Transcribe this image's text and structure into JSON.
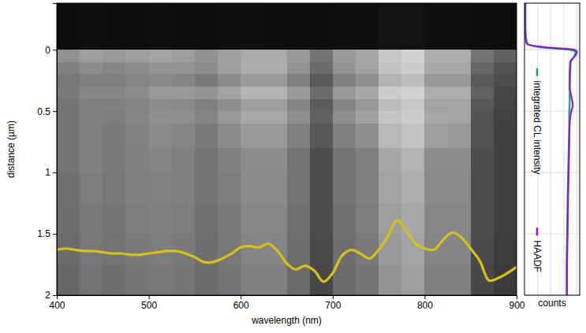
{
  "chart_data": [
    {
      "type": "heatmap",
      "xlabel": "wavelength (nm)",
      "ylabel": "distance (µm)",
      "xlim": [
        400,
        900
      ],
      "ylim": [
        -0.38,
        2
      ],
      "xticks": [
        400,
        500,
        600,
        700,
        800,
        900
      ],
      "yticks": [
        0,
        0.5,
        1,
        1.5,
        2
      ],
      "zlim": [
        0,
        1
      ],
      "x_edges": [
        400,
        425,
        450,
        475,
        500,
        525,
        550,
        575,
        600,
        625,
        650,
        675,
        700,
        725,
        750,
        775,
        800,
        825,
        850,
        875,
        900
      ],
      "y_edges": [
        -0.38,
        0,
        0.1,
        0.2,
        0.3,
        0.4,
        0.5,
        0.6,
        0.8,
        1.0,
        1.25,
        1.5,
        1.75,
        2.0
      ],
      "cells": [
        [
          0.05,
          0.06,
          0.05,
          0.05,
          0.06,
          0.05,
          0.05,
          0.06,
          0.06,
          0.05,
          0.05,
          0.05,
          0.06,
          0.06,
          0.07,
          0.07,
          0.06,
          0.06,
          0.05,
          0.05
        ],
        [
          0.57,
          0.62,
          0.6,
          0.62,
          0.64,
          0.62,
          0.57,
          0.62,
          0.67,
          0.67,
          0.6,
          0.45,
          0.6,
          0.65,
          0.78,
          0.82,
          0.68,
          0.68,
          0.45,
          0.38
        ],
        [
          0.5,
          0.55,
          0.52,
          0.55,
          0.58,
          0.58,
          0.55,
          0.62,
          0.68,
          0.68,
          0.58,
          0.42,
          0.58,
          0.64,
          0.76,
          0.8,
          0.66,
          0.66,
          0.4,
          0.32
        ],
        [
          0.47,
          0.5,
          0.5,
          0.52,
          0.54,
          0.52,
          0.48,
          0.54,
          0.6,
          0.6,
          0.5,
          0.35,
          0.5,
          0.56,
          0.7,
          0.74,
          0.6,
          0.6,
          0.35,
          0.3
        ],
        [
          0.48,
          0.52,
          0.52,
          0.55,
          0.6,
          0.6,
          0.58,
          0.64,
          0.7,
          0.7,
          0.6,
          0.42,
          0.6,
          0.66,
          0.8,
          0.82,
          0.68,
          0.68,
          0.38,
          0.28
        ],
        [
          0.46,
          0.5,
          0.5,
          0.52,
          0.55,
          0.54,
          0.5,
          0.56,
          0.62,
          0.62,
          0.52,
          0.36,
          0.52,
          0.6,
          0.74,
          0.78,
          0.64,
          0.64,
          0.34,
          0.27
        ],
        [
          0.46,
          0.5,
          0.49,
          0.52,
          0.56,
          0.56,
          0.52,
          0.6,
          0.66,
          0.66,
          0.56,
          0.38,
          0.56,
          0.63,
          0.77,
          0.8,
          0.66,
          0.64,
          0.33,
          0.26
        ],
        [
          0.45,
          0.5,
          0.48,
          0.51,
          0.54,
          0.52,
          0.48,
          0.54,
          0.6,
          0.6,
          0.5,
          0.34,
          0.5,
          0.56,
          0.72,
          0.76,
          0.62,
          0.6,
          0.32,
          0.25
        ],
        [
          0.45,
          0.5,
          0.48,
          0.5,
          0.52,
          0.5,
          0.45,
          0.5,
          0.55,
          0.55,
          0.45,
          0.3,
          0.45,
          0.5,
          0.65,
          0.7,
          0.55,
          0.55,
          0.3,
          0.25
        ],
        [
          0.44,
          0.49,
          0.47,
          0.5,
          0.51,
          0.5,
          0.45,
          0.49,
          0.54,
          0.54,
          0.45,
          0.3,
          0.45,
          0.5,
          0.64,
          0.68,
          0.54,
          0.54,
          0.3,
          0.25
        ],
        [
          0.43,
          0.48,
          0.46,
          0.49,
          0.5,
          0.49,
          0.44,
          0.48,
          0.53,
          0.53,
          0.44,
          0.3,
          0.44,
          0.49,
          0.62,
          0.66,
          0.53,
          0.53,
          0.3,
          0.25
        ],
        [
          0.42,
          0.47,
          0.45,
          0.48,
          0.49,
          0.48,
          0.43,
          0.47,
          0.52,
          0.52,
          0.43,
          0.29,
          0.43,
          0.48,
          0.6,
          0.64,
          0.52,
          0.52,
          0.29,
          0.24
        ],
        [
          0.4,
          0.45,
          0.43,
          0.46,
          0.47,
          0.46,
          0.42,
          0.45,
          0.5,
          0.5,
          0.42,
          0.28,
          0.42,
          0.46,
          0.58,
          0.62,
          0.5,
          0.5,
          0.28,
          0.23
        ]
      ],
      "series": [
        {
          "type": "line",
          "color": "#d4c21a",
          "x": [
            400,
            410,
            420,
            430,
            440,
            450,
            460,
            470,
            480,
            490,
            500,
            510,
            520,
            530,
            540,
            550,
            560,
            570,
            580,
            590,
            600,
            610,
            620,
            630,
            640,
            650,
            660,
            670,
            680,
            690,
            700,
            710,
            720,
            730,
            740,
            750,
            760,
            770,
            780,
            790,
            800,
            810,
            820,
            830,
            840,
            850,
            860,
            870,
            880,
            890,
            900
          ],
          "values": [
            1.63,
            1.62,
            1.63,
            1.64,
            1.64,
            1.65,
            1.66,
            1.66,
            1.67,
            1.67,
            1.66,
            1.65,
            1.64,
            1.64,
            1.66,
            1.69,
            1.73,
            1.73,
            1.7,
            1.66,
            1.61,
            1.6,
            1.61,
            1.58,
            1.64,
            1.74,
            1.79,
            1.76,
            1.8,
            1.89,
            1.82,
            1.68,
            1.63,
            1.66,
            1.7,
            1.63,
            1.52,
            1.39,
            1.47,
            1.58,
            1.62,
            1.63,
            1.55,
            1.49,
            1.53,
            1.62,
            1.72,
            1.88,
            1.86,
            1.82,
            1.77
          ]
        }
      ]
    },
    {
      "type": "line",
      "orientation": "horizontal",
      "xlabel": "counts",
      "xlim": [
        0,
        1.05
      ],
      "xticks": [
        0.25,
        0.5,
        0.75,
        1
      ],
      "ylim": [
        -0.38,
        2
      ],
      "yticks": [
        0,
        0.5,
        1,
        1.5,
        2
      ],
      "grid": true,
      "tick_labels": false,
      "legend": "left",
      "series": [
        {
          "name": "integrated CL intensity",
          "color": "#1aa37a",
          "y": [
            -0.38,
            -0.3,
            -0.2,
            -0.1,
            -0.05,
            -0.02,
            0,
            0.02,
            0.05,
            0.1,
            0.2,
            0.3,
            0.4,
            0.45,
            0.5,
            0.6,
            0.8,
            1.0,
            1.2,
            1.5,
            1.8,
            2.0
          ],
          "values": [
            0.02,
            0.02,
            0.02,
            0.03,
            0.06,
            0.3,
            0.85,
            0.97,
            0.95,
            0.88,
            0.87,
            0.86,
            0.86,
            0.86,
            0.85,
            0.85,
            0.84,
            0.83,
            0.82,
            0.81,
            0.8,
            0.8
          ]
        },
        {
          "name": "HAADF",
          "color": "#8a1fc9",
          "y": [
            -0.38,
            -0.3,
            -0.2,
            -0.1,
            -0.05,
            -0.02,
            0,
            0.02,
            0.05,
            0.1,
            0.2,
            0.3,
            0.4,
            0.45,
            0.5,
            0.6,
            0.8,
            1.0,
            1.2,
            1.5,
            1.8,
            2.0
          ],
          "values": [
            0.01,
            0.01,
            0.01,
            0.02,
            0.04,
            0.4,
            0.95,
            1.0,
            0.96,
            0.87,
            0.86,
            0.86,
            0.9,
            0.92,
            0.89,
            0.86,
            0.85,
            0.84,
            0.83,
            0.82,
            0.81,
            0.81
          ]
        }
      ]
    }
  ]
}
